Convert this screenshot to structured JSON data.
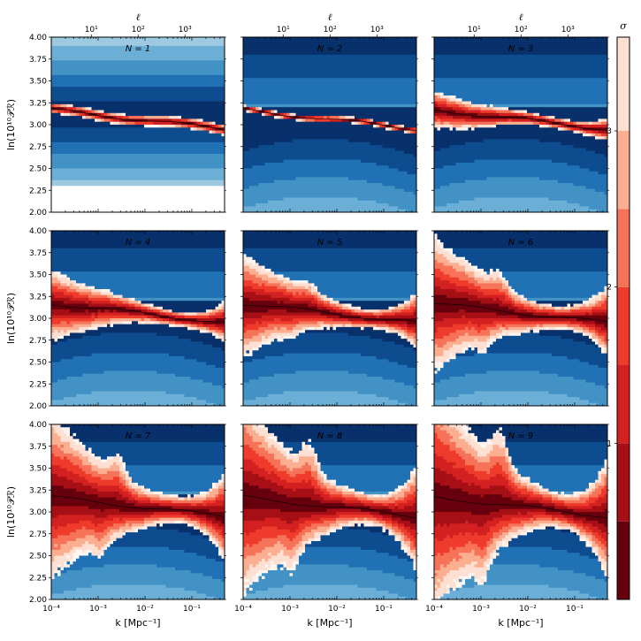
{
  "chart_data": {
    "type": "heatmap",
    "description_note": "",
    "panels": [
      {
        "label": "N = 1",
        "N": 1
      },
      {
        "label": "N = 2",
        "N": 2
      },
      {
        "label": "N = 3",
        "N": 3
      },
      {
        "label": "N = 4",
        "N": 4
      },
      {
        "label": "N = 5",
        "N": 5
      },
      {
        "label": "N = 6",
        "N": 6
      },
      {
        "label": "N = 7",
        "N": 7
      },
      {
        "label": "N = 8",
        "N": 8
      },
      {
        "label": "N = 9",
        "N": 9
      }
    ],
    "xlabel": "k   [Mpc⁻¹]",
    "ylabel": "ln(10¹⁰𝒫ℛ)",
    "top_axis_label": "ℓ",
    "x_scale": "log",
    "xlim": [
      0.0001,
      0.5
    ],
    "ylim": [
      2.0,
      4.0
    ],
    "x_ticks": [
      {
        "value": 0.0001,
        "label": "10⁻⁴"
      },
      {
        "value": 0.001,
        "label": "10⁻³"
      },
      {
        "value": 0.01,
        "label": "10⁻²"
      },
      {
        "value": 0.1,
        "label": "10⁻¹"
      }
    ],
    "y_ticks": [
      {
        "value": 2.0,
        "label": "2.00"
      },
      {
        "value": 2.25,
        "label": "2.25"
      },
      {
        "value": 2.5,
        "label": "2.50"
      },
      {
        "value": 2.75,
        "label": "2.75"
      },
      {
        "value": 3.0,
        "label": "3.00"
      },
      {
        "value": 3.25,
        "label": "3.25"
      },
      {
        "value": 3.5,
        "label": "3.50"
      },
      {
        "value": 3.75,
        "label": "3.75"
      },
      {
        "value": 4.0,
        "label": "4.00"
      }
    ],
    "top_ticks": [
      {
        "value": 10,
        "label": "10¹"
      },
      {
        "value": 100,
        "label": "10²"
      },
      {
        "value": 1000,
        "label": "10³"
      }
    ],
    "colorbar": {
      "label": "σ",
      "range": [
        0,
        3.6
      ],
      "ticks": [
        {
          "value": 1,
          "label": "1"
        },
        {
          "value": 2,
          "label": "2"
        },
        {
          "value": 3,
          "label": "3"
        }
      ],
      "levels": [
        0,
        0.5,
        1,
        1.5,
        2,
        2.5,
        3,
        3.6
      ],
      "colors": [
        "#67000d",
        "#a50f15",
        "#d32020",
        "#ef3b2c",
        "#f6735a",
        "#fcae91",
        "#fee0d2",
        "#fff5f0"
      ]
    },
    "blue_palette": [
      "#08306b",
      "#0d4c8f",
      "#2171b5",
      "#4292c6",
      "#6baed6",
      "#9ecae1",
      "#c6dbef",
      "#e3eef8"
    ],
    "grid": false
  }
}
